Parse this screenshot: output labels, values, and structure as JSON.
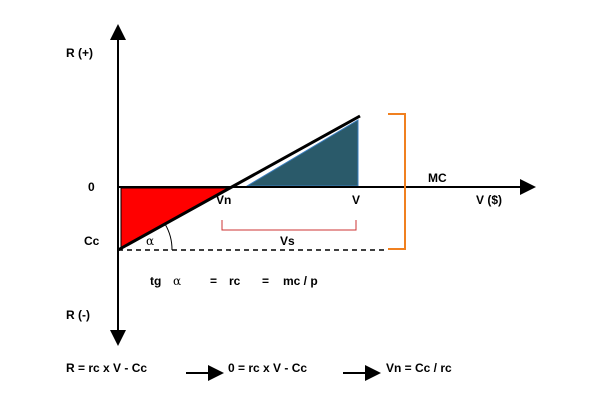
{
  "axes": {
    "y_top_label": "R (+)",
    "y_bottom_label": "R (-)",
    "x_label": "V ($)",
    "zero_label": "0"
  },
  "points": {
    "cc_label": "Cc",
    "vn_label": "Vn",
    "v_label": "V",
    "mc_label": "MC",
    "vs_label": "Vs",
    "alpha_label": "α"
  },
  "formula_mid": {
    "tg": "tg",
    "alpha": "α",
    "eq1": "=",
    "rc": "rc",
    "eq2": "=",
    "mcp": "mc / p"
  },
  "formula_bottom": {
    "part1": "R = rc x V - Cc",
    "part2": "0 = rc x V - Cc",
    "part3": "Vn = Cc / rc"
  },
  "colors": {
    "loss_area": "#ff0000",
    "profit_area": "#2a5a6a",
    "bracket": "#f08020",
    "vs_bracket": "#cc3333",
    "line": "#000000"
  }
}
